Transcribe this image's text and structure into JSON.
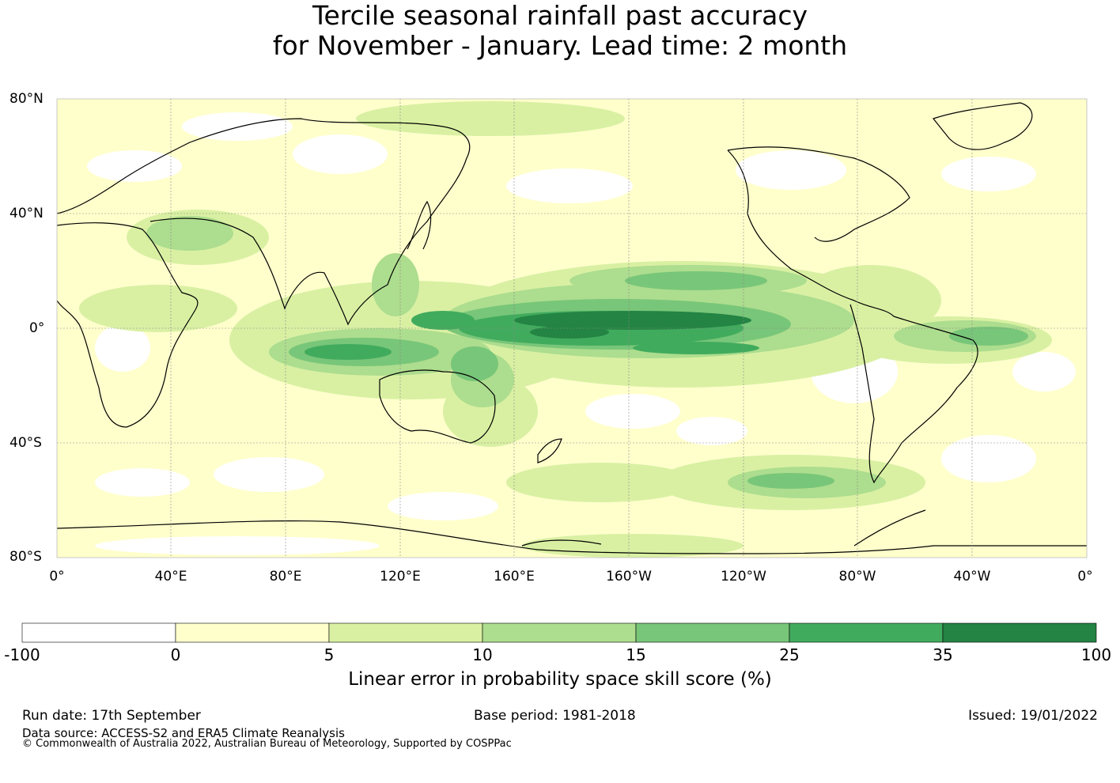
{
  "title": {
    "line1": "Tercile seasonal rainfall past accuracy",
    "line2": "for November - January. Lead time: 2 month"
  },
  "map": {
    "lat_labels": [
      "80°N",
      "40°N",
      "0°",
      "40°S",
      "80°S"
    ],
    "lon_labels": [
      "0°",
      "40°E",
      "80°E",
      "120°E",
      "160°E",
      "160°W",
      "120°W",
      "80°W",
      "40°W",
      "0°"
    ]
  },
  "colorbar": {
    "ticks": [
      "-100",
      "0",
      "5",
      "10",
      "15",
      "25",
      "35",
      "100"
    ],
    "colors": [
      "#ffffff",
      "#ffffcc",
      "#d9f0a3",
      "#addd8e",
      "#78c679",
      "#41ab5d",
      "#238443"
    ],
    "label": "Linear error in probability space skill score (%)"
  },
  "footer": {
    "run_date": "Run date: 17th September",
    "base_period": "Base period: 1981-2018",
    "issued": "Issued: 19/01/2022",
    "data_source": "Data source: ACCESS-S2 and ERA5 Climate Reanalysis",
    "copyright": "© Commonwealth of Australia 2022, Australian Bureau of Meteorology, Supported by COSPPac"
  }
}
